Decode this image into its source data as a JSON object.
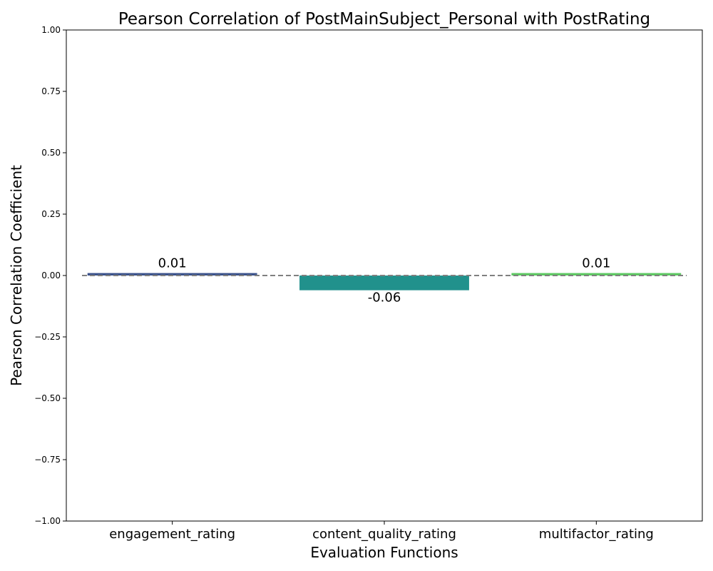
{
  "chart_data": {
    "type": "bar",
    "title": "Pearson Correlation of PostMainSubject_Personal with PostRating",
    "xlabel": "Evaluation Functions",
    "ylabel": "Pearson Correlation Coefficient",
    "categories": [
      "engagement_rating",
      "content_quality_rating",
      "multifactor_rating"
    ],
    "values": [
      0.01,
      -0.06,
      0.01
    ],
    "data_labels": [
      "0.01",
      "-0.06",
      "0.01"
    ],
    "bar_colors": [
      "#3b528b",
      "#21918c",
      "#5ec962"
    ],
    "ylim": [
      -1.0,
      1.0
    ],
    "yticks": [
      -1.0,
      -0.75,
      -0.5,
      -0.25,
      0.0,
      0.25,
      0.5,
      0.75,
      1.0
    ],
    "ytick_labels": [
      "−1.00",
      "−0.75",
      "−0.50",
      "−0.25",
      "0.00",
      "0.25",
      "0.50",
      "0.75",
      "1.00"
    ],
    "reference_line": {
      "y": 0,
      "style": "dashed",
      "color": "#808080"
    },
    "grid": false,
    "legend": "none"
  }
}
